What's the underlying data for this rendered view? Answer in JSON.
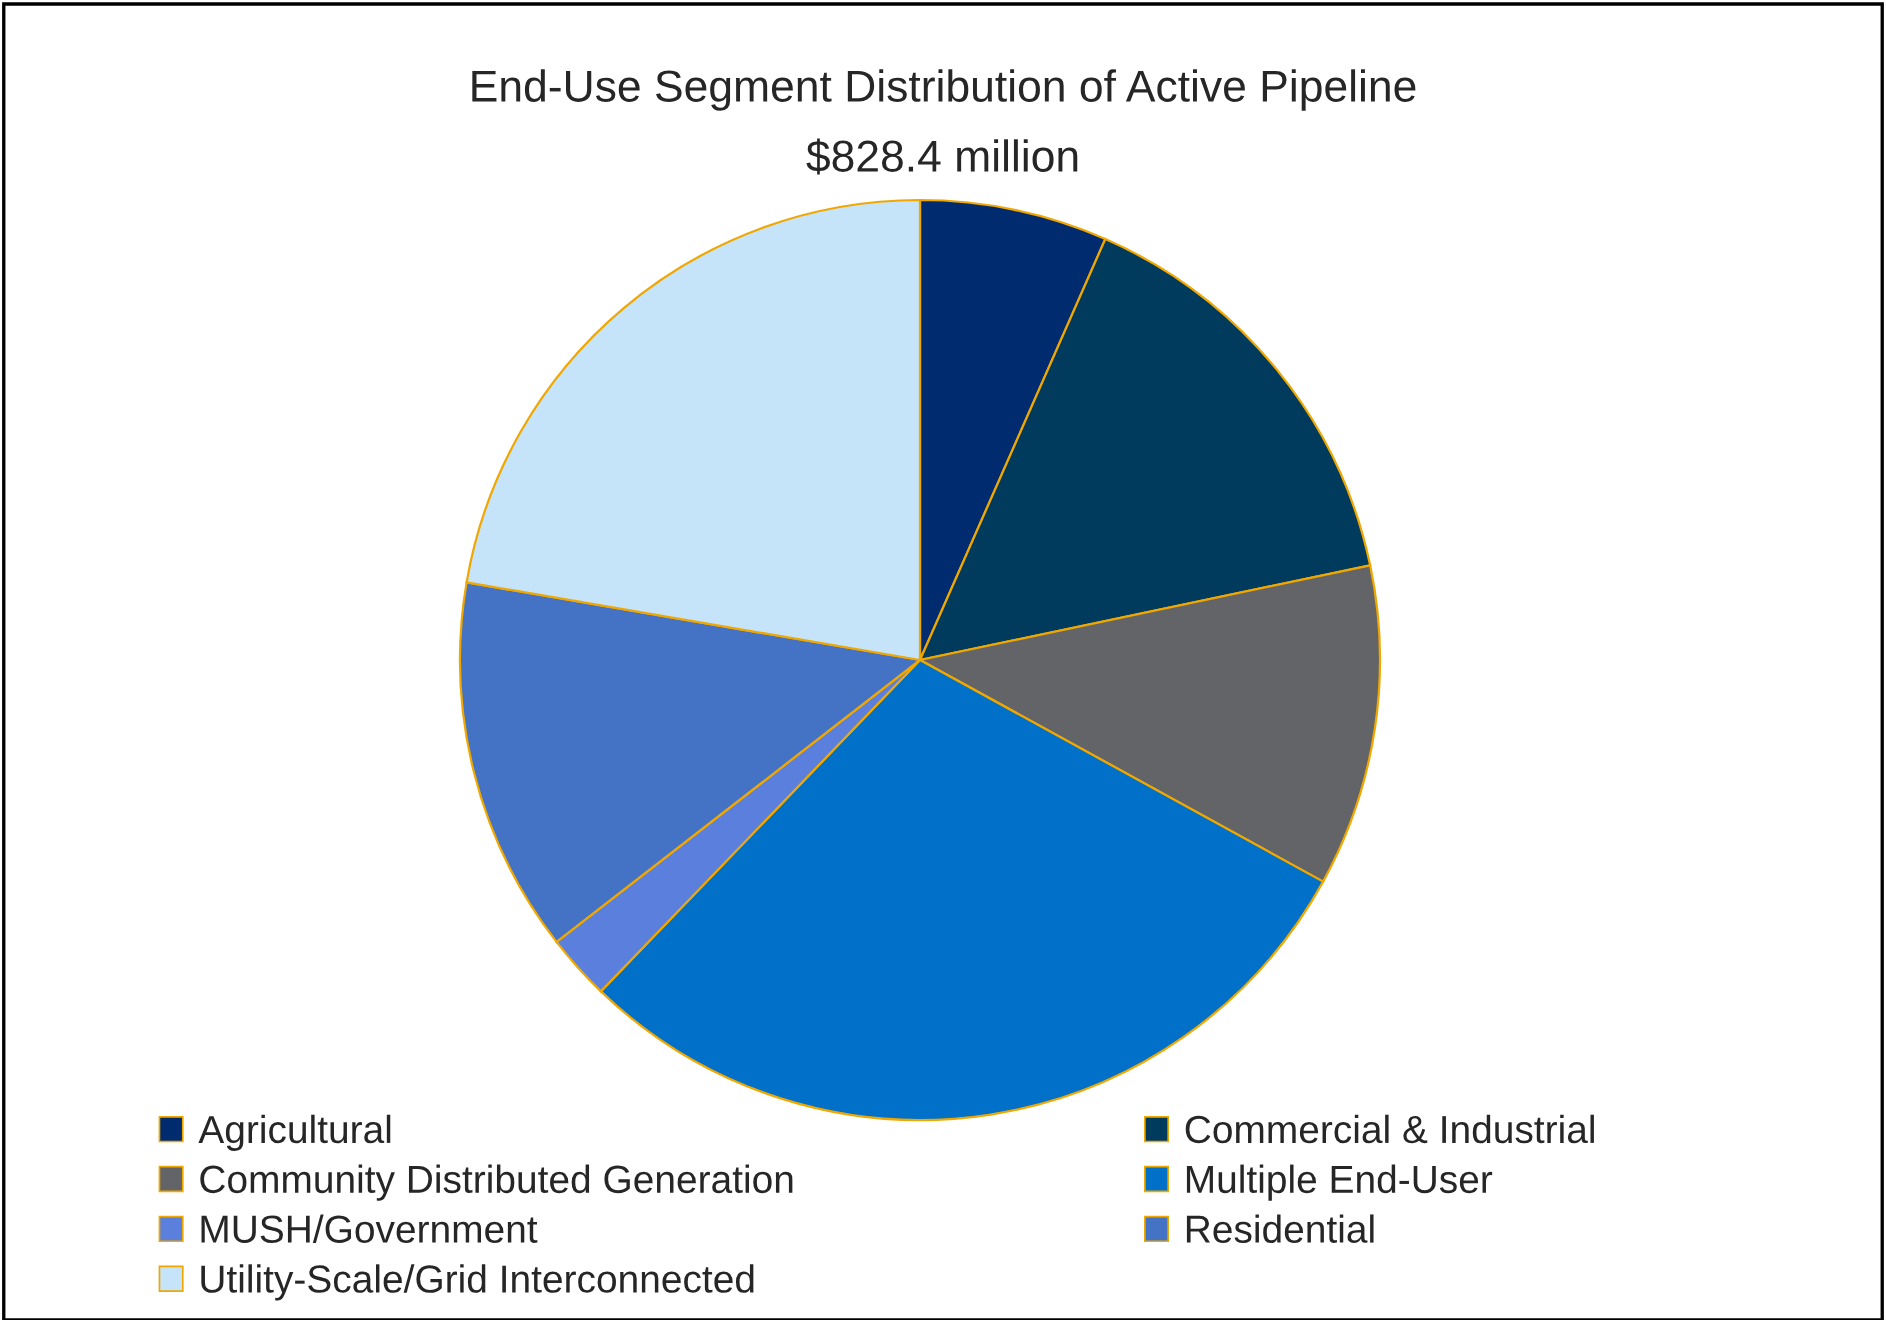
{
  "chart_data": {
    "type": "pie",
    "title": "End-Use Segment Distribution of Active Pipeline",
    "subtitle": "$828.4 million",
    "categories": [
      "Agricultural",
      "Commercial & Industrial",
      "Community Distributed Generation",
      "Multiple End-User",
      "MUSH/Government",
      "Residential",
      "Utility-Scale/Grid Interconnected"
    ],
    "values": [
      6.6,
      15.1,
      11.3,
      29.2,
      2.3,
      13.2,
      22.3
    ],
    "colors": [
      "#002b6e",
      "#003a5d",
      "#636467",
      "#0070c8",
      "#5b7fdc",
      "#4472c4",
      "#c5e4fa"
    ],
    "legend": "bottom"
  }
}
